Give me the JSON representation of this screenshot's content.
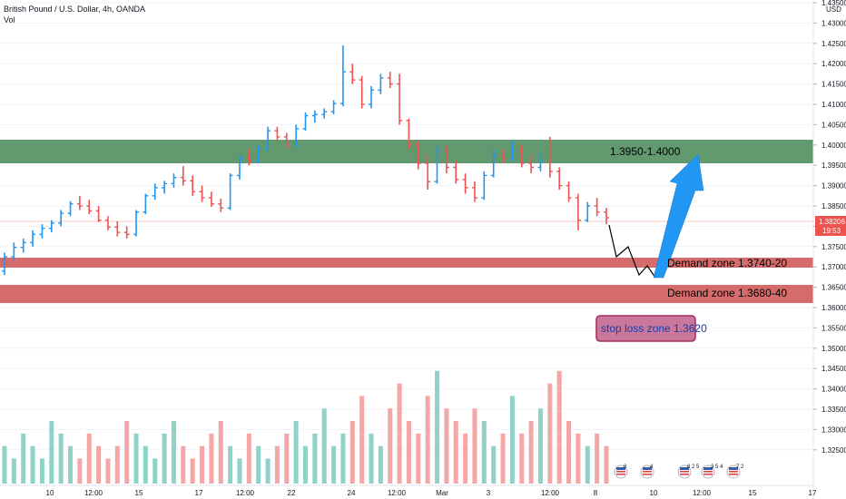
{
  "header": {
    "title": "British Pound / U.S. Dollar, 4h, OANDA",
    "indicator": "Vol"
  },
  "axis": {
    "currency": "USD",
    "current_price": "1.38206",
    "countdown": "19:53"
  },
  "zones": {
    "supply_label": "1.3950-1.4000",
    "demand1_label": "Demand zone 1.3740-20",
    "demand2_label": "Demand zone 1.3680-40",
    "stop_label": "stop loss zone 1.3620"
  },
  "events": [
    {
      "flag": "us",
      "count": "8"
    },
    {
      "flag": "us",
      "count": "4"
    },
    {
      "flag": "us",
      "count": "8 2 5"
    },
    {
      "flag": "us",
      "count": "3 5 4"
    },
    {
      "flag": "us",
      "count": "7 2"
    }
  ],
  "colors": {
    "up": "#2196f3",
    "down": "#ef5350",
    "supply_zone": "#5a9367",
    "demand_zone": "#d46363",
    "stop_zone_fill": "#c9789b",
    "stop_zone_border": "#a52a5a",
    "arrow": "#2196f3",
    "vol_up": "#8fd3c8",
    "vol_down": "#f4a7a7",
    "price_tag": "#ef5350"
  },
  "chart_data": {
    "type": "ohlc",
    "symbol": "GBPUSD",
    "timeframe": "4h",
    "ylim": [
      1.3225,
      1.435
    ],
    "y_ticks": [
      1.435,
      1.43,
      1.425,
      1.42,
      1.415,
      1.41,
      1.405,
      1.4,
      1.395,
      1.39,
      1.385,
      1.38,
      1.375,
      1.37,
      1.365,
      1.36,
      1.355,
      1.35,
      1.345,
      1.34,
      1.335,
      1.33,
      1.325
    ],
    "x_ticks": [
      "10",
      "12:00",
      "15",
      "17",
      "12:00",
      "22",
      "24",
      "12:00",
      "Mar",
      "3",
      "12:00",
      "8",
      "10",
      "12:00",
      "15",
      "17"
    ],
    "bars": [
      {
        "o": 1.369,
        "h": 1.3735,
        "l": 1.368,
        "c": 1.3725
      },
      {
        "o": 1.3725,
        "h": 1.376,
        "l": 1.3715,
        "c": 1.3748
      },
      {
        "o": 1.3748,
        "h": 1.377,
        "l": 1.3735,
        "c": 1.376
      },
      {
        "o": 1.376,
        "h": 1.379,
        "l": 1.375,
        "c": 1.378
      },
      {
        "o": 1.378,
        "h": 1.3805,
        "l": 1.377,
        "c": 1.3795
      },
      {
        "o": 1.3795,
        "h": 1.3815,
        "l": 1.3785,
        "c": 1.3808
      },
      {
        "o": 1.3808,
        "h": 1.384,
        "l": 1.38,
        "c": 1.3832
      },
      {
        "o": 1.3832,
        "h": 1.3862,
        "l": 1.3825,
        "c": 1.3855
      },
      {
        "o": 1.3855,
        "h": 1.3875,
        "l": 1.384,
        "c": 1.385
      },
      {
        "o": 1.385,
        "h": 1.3865,
        "l": 1.383,
        "c": 1.3838
      },
      {
        "o": 1.3838,
        "h": 1.385,
        "l": 1.381,
        "c": 1.3815
      },
      {
        "o": 1.3815,
        "h": 1.3825,
        "l": 1.379,
        "c": 1.3798
      },
      {
        "o": 1.3798,
        "h": 1.3812,
        "l": 1.3775,
        "c": 1.3785
      },
      {
        "o": 1.3785,
        "h": 1.38,
        "l": 1.377,
        "c": 1.378
      },
      {
        "o": 1.378,
        "h": 1.384,
        "l": 1.3775,
        "c": 1.3835
      },
      {
        "o": 1.3835,
        "h": 1.388,
        "l": 1.383,
        "c": 1.3875
      },
      {
        "o": 1.3875,
        "h": 1.3905,
        "l": 1.3865,
        "c": 1.3895
      },
      {
        "o": 1.3895,
        "h": 1.3912,
        "l": 1.388,
        "c": 1.3905
      },
      {
        "o": 1.3905,
        "h": 1.393,
        "l": 1.3895,
        "c": 1.392
      },
      {
        "o": 1.392,
        "h": 1.3948,
        "l": 1.39,
        "c": 1.3912
      },
      {
        "o": 1.3912,
        "h": 1.3925,
        "l": 1.3875,
        "c": 1.3885
      },
      {
        "o": 1.3885,
        "h": 1.39,
        "l": 1.386,
        "c": 1.387
      },
      {
        "o": 1.387,
        "h": 1.3885,
        "l": 1.3848,
        "c": 1.3855
      },
      {
        "o": 1.3855,
        "h": 1.3868,
        "l": 1.3835,
        "c": 1.3845
      },
      {
        "o": 1.3845,
        "h": 1.393,
        "l": 1.384,
        "c": 1.3925
      },
      {
        "o": 1.3925,
        "h": 1.3975,
        "l": 1.3915,
        "c": 1.3968
      },
      {
        "o": 1.3968,
        "h": 1.399,
        "l": 1.395,
        "c": 1.396
      },
      {
        "o": 1.396,
        "h": 1.4,
        "l": 1.3955,
        "c": 1.3992
      },
      {
        "o": 1.3992,
        "h": 1.4045,
        "l": 1.3985,
        "c": 1.4035
      },
      {
        "o": 1.4035,
        "h": 1.4045,
        "l": 1.401,
        "c": 1.402
      },
      {
        "o": 1.402,
        "h": 1.403,
        "l": 1.399,
        "c": 1.4
      },
      {
        "o": 1.4,
        "h": 1.405,
        "l": 1.3995,
        "c": 1.404
      },
      {
        "o": 1.404,
        "h": 1.408,
        "l": 1.4035,
        "c": 1.4072
      },
      {
        "o": 1.4072,
        "h": 1.4085,
        "l": 1.4055,
        "c": 1.4075
      },
      {
        "o": 1.4075,
        "h": 1.409,
        "l": 1.4065,
        "c": 1.4082
      },
      {
        "o": 1.4082,
        "h": 1.411,
        "l": 1.4075,
        "c": 1.4102
      },
      {
        "o": 1.4102,
        "h": 1.4245,
        "l": 1.4095,
        "c": 1.418
      },
      {
        "o": 1.418,
        "h": 1.42,
        "l": 1.415,
        "c": 1.416
      },
      {
        "o": 1.416,
        "h": 1.417,
        "l": 1.409,
        "c": 1.41
      },
      {
        "o": 1.41,
        "h": 1.4145,
        "l": 1.409,
        "c": 1.4135
      },
      {
        "o": 1.4135,
        "h": 1.4175,
        "l": 1.4125,
        "c": 1.4165
      },
      {
        "o": 1.4165,
        "h": 1.418,
        "l": 1.414,
        "c": 1.415
      },
      {
        "o": 1.415,
        "h": 1.4175,
        "l": 1.405,
        "c": 1.406
      },
      {
        "o": 1.406,
        "h": 1.4065,
        "l": 1.399,
        "c": 1.4
      },
      {
        "o": 1.4,
        "h": 1.401,
        "l": 1.394,
        "c": 1.3955
      },
      {
        "o": 1.3955,
        "h": 1.3975,
        "l": 1.389,
        "c": 1.391
      },
      {
        "o": 1.391,
        "h": 1.4,
        "l": 1.3905,
        "c": 1.3985
      },
      {
        "o": 1.3985,
        "h": 1.4,
        "l": 1.393,
        "c": 1.3945
      },
      {
        "o": 1.3945,
        "h": 1.396,
        "l": 1.3905,
        "c": 1.3915
      },
      {
        "o": 1.3915,
        "h": 1.393,
        "l": 1.388,
        "c": 1.3895
      },
      {
        "o": 1.3895,
        "h": 1.391,
        "l": 1.386,
        "c": 1.387
      },
      {
        "o": 1.387,
        "h": 1.3935,
        "l": 1.3865,
        "c": 1.3925
      },
      {
        "o": 1.3925,
        "h": 1.399,
        "l": 1.392,
        "c": 1.3975
      },
      {
        "o": 1.3975,
        "h": 1.399,
        "l": 1.3955,
        "c": 1.3965
      },
      {
        "o": 1.3965,
        "h": 1.401,
        "l": 1.396,
        "c": 1.3985
      },
      {
        "o": 1.3985,
        "h": 1.4,
        "l": 1.3945,
        "c": 1.3955
      },
      {
        "o": 1.3955,
        "h": 1.3975,
        "l": 1.393,
        "c": 1.3945
      },
      {
        "o": 1.3945,
        "h": 1.398,
        "l": 1.3935,
        "c": 1.396
      },
      {
        "o": 1.396,
        "h": 1.402,
        "l": 1.392,
        "c": 1.3935
      },
      {
        "o": 1.3935,
        "h": 1.3945,
        "l": 1.389,
        "c": 1.39
      },
      {
        "o": 1.39,
        "h": 1.391,
        "l": 1.386,
        "c": 1.387
      },
      {
        "o": 1.387,
        "h": 1.388,
        "l": 1.379,
        "c": 1.3815
      },
      {
        "o": 1.3815,
        "h": 1.386,
        "l": 1.381,
        "c": 1.385
      },
      {
        "o": 1.385,
        "h": 1.387,
        "l": 1.3825,
        "c": 1.3835
      },
      {
        "o": 1.3835,
        "h": 1.3845,
        "l": 1.3805,
        "c": 1.3821
      }
    ],
    "volume": [
      3,
      2,
      4,
      3,
      2,
      5,
      4,
      3,
      2,
      4,
      3,
      2,
      3,
      5,
      4,
      3,
      2,
      4,
      5,
      3,
      2,
      3,
      4,
      5,
      3,
      2,
      4,
      3,
      2,
      3,
      4,
      5,
      3,
      4,
      6,
      3,
      4,
      5,
      7,
      4,
      3,
      6,
      8,
      5,
      4,
      7,
      9,
      6,
      5,
      4,
      6,
      5,
      3,
      4,
      7,
      4,
      5,
      6,
      8,
      9,
      5,
      4,
      3,
      4,
      3
    ],
    "vol_ylim": [
      0,
      10
    ]
  }
}
